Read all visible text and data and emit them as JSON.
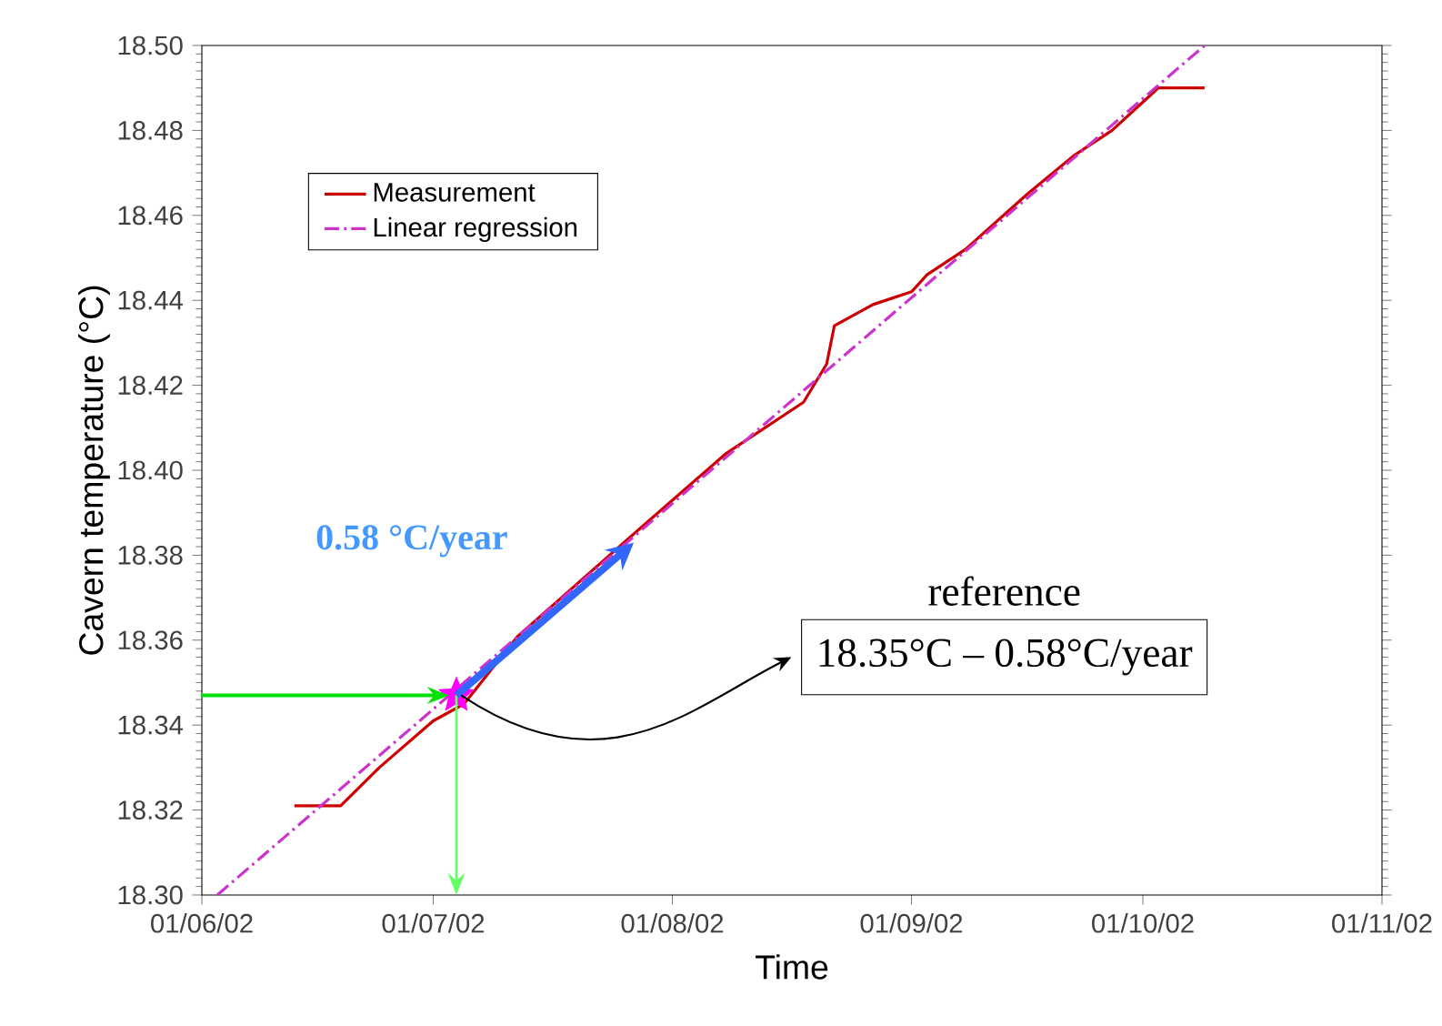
{
  "chart_data": {
    "type": "line",
    "xlabel": "Time",
    "ylabel": "Cavern temperature (°C)",
    "xlim": [
      "2002-06-01",
      "2002-11-01"
    ],
    "xticks": [
      {
        "value": "2002-06-01",
        "label": "01/06/02"
      },
      {
        "value": "2002-07-01",
        "label": "01/07/02"
      },
      {
        "value": "2002-08-01",
        "label": "01/08/02"
      },
      {
        "value": "2002-09-01",
        "label": "01/09/02"
      },
      {
        "value": "2002-10-01",
        "label": "01/10/02"
      },
      {
        "value": "2002-11-01",
        "label": "01/11/02"
      }
    ],
    "ylim": [
      18.3,
      18.5
    ],
    "yticks": [
      {
        "value": 18.3,
        "label": "18.30"
      },
      {
        "value": 18.32,
        "label": "18.32"
      },
      {
        "value": 18.34,
        "label": "18.34"
      },
      {
        "value": 18.36,
        "label": "18.36"
      },
      {
        "value": 18.38,
        "label": "18.38"
      },
      {
        "value": 18.4,
        "label": "18.40"
      },
      {
        "value": 18.42,
        "label": "18.42"
      },
      {
        "value": 18.44,
        "label": "18.44"
      },
      {
        "value": 18.46,
        "label": "18.46"
      },
      {
        "value": 18.48,
        "label": "18.48"
      },
      {
        "value": 18.5,
        "label": "18.50"
      }
    ],
    "legend": "top left",
    "grid": false,
    "series": [
      {
        "name": "Measurement",
        "color": "#cc0000",
        "line_style": "solid",
        "x": [
          "2002-06-13",
          "2002-06-19",
          "2002-06-24",
          "2002-07-01",
          "2002-07-05",
          "2002-07-12",
          "2002-07-27",
          "2002-08-08",
          "2002-08-18",
          "2002-08-21",
          "2002-08-22",
          "2002-08-27",
          "2002-09-01",
          "2002-09-03",
          "2002-09-08",
          "2002-09-16",
          "2002-09-22",
          "2002-09-27",
          "2002-10-03",
          "2002-10-09"
        ],
        "values": [
          18.321,
          18.321,
          18.33,
          18.341,
          18.345,
          18.361,
          18.385,
          18.404,
          18.416,
          18.425,
          18.434,
          18.439,
          18.442,
          18.446,
          18.452,
          18.465,
          18.474,
          18.48,
          18.49,
          18.49
        ]
      },
      {
        "name": "Linear regression",
        "color": "#cc33cc",
        "line_style": "dashed",
        "x": [
          "2002-06-03",
          "2002-10-09"
        ],
        "values": [
          18.3,
          18.5
        ]
      },
      {
        "type": "scatter",
        "color": "#ff00ff",
        "marker": "star",
        "x": [
          "2002-07-04"
        ],
        "values": [
          18.347
        ]
      }
    ],
    "annotations": [
      "0.58 °C/year",
      "reference",
      {
        "text": "18.35°C – 0.58°C/year",
        "x": "2002-07-04",
        "y": 18.347
      }
    ]
  }
}
